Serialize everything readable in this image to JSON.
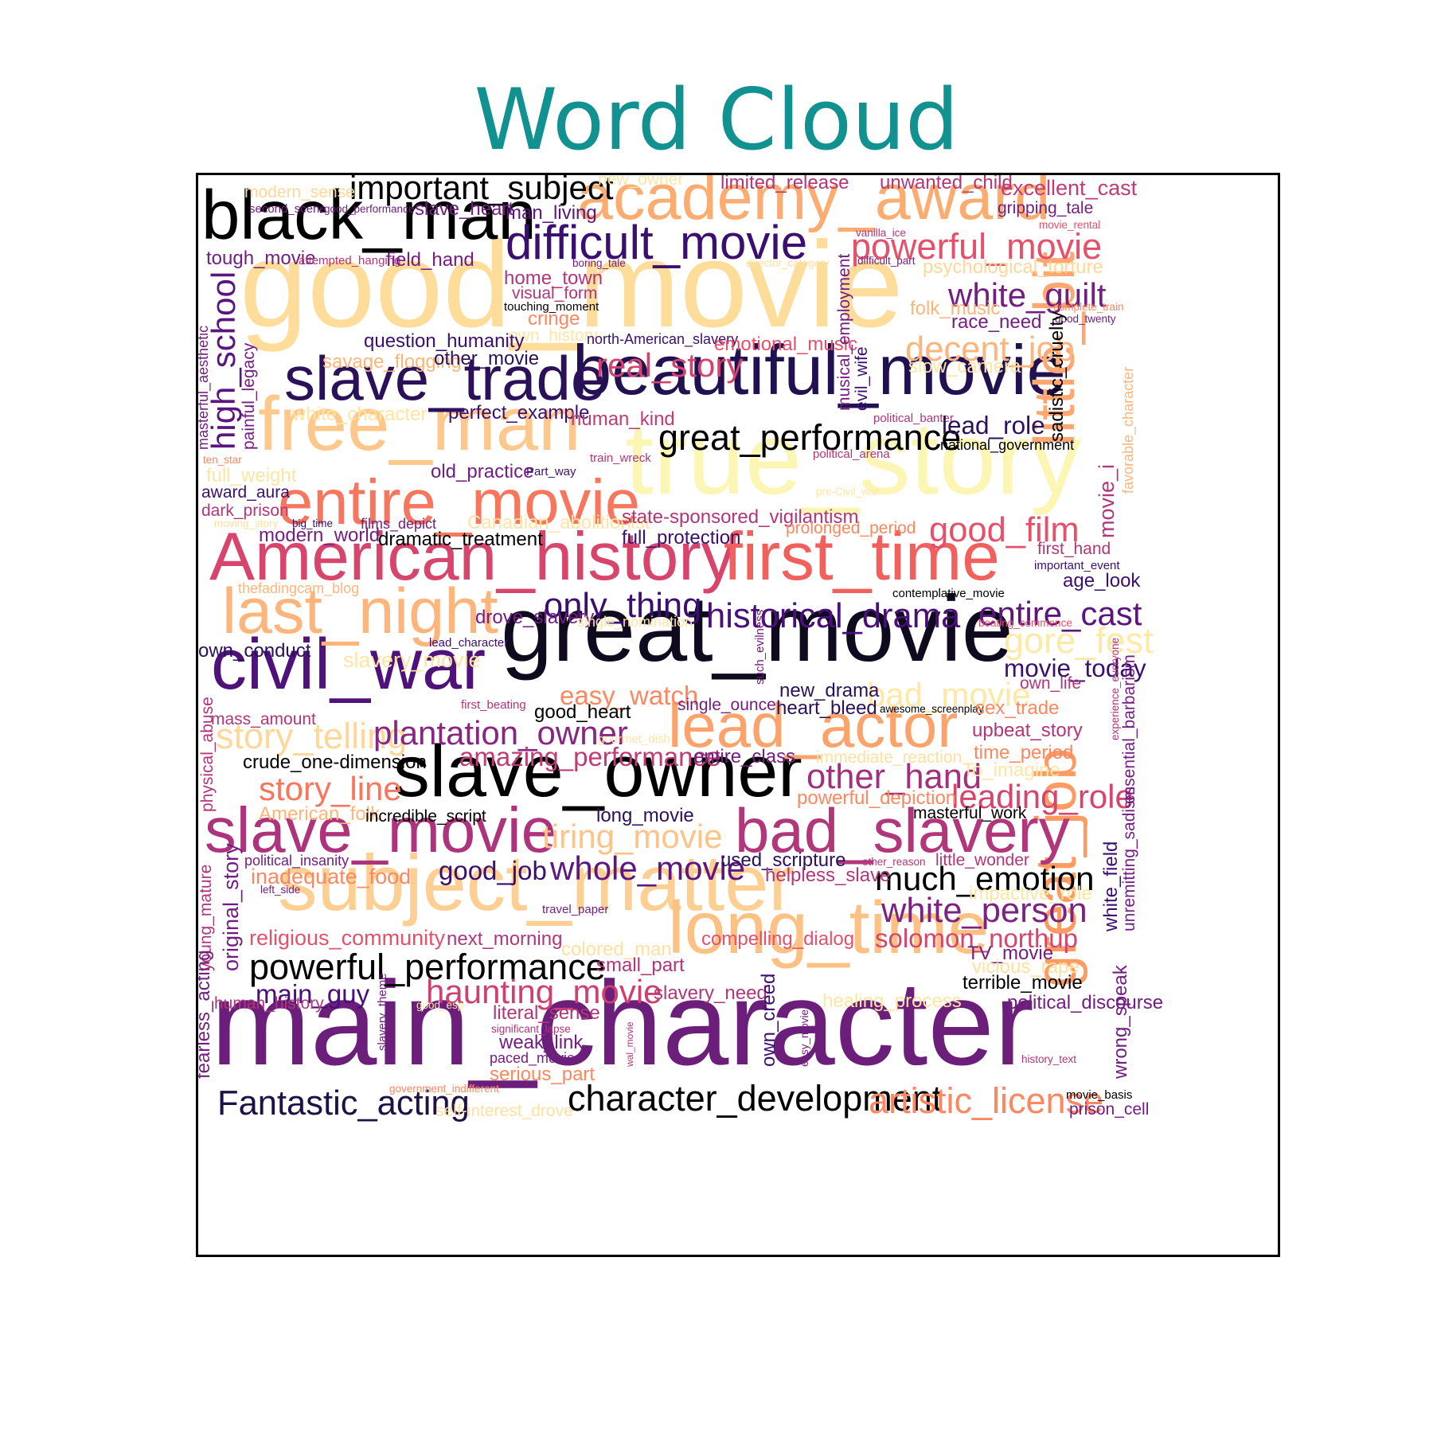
{
  "title": "Word Cloud",
  "colors": {
    "title": "#11918f",
    "frame": "#000000"
  },
  "chart_data": {
    "type": "wordcloud",
    "title": "Word Cloud",
    "colormap": "magma",
    "words": [
      {
        "text": "main_character",
        "weight": 100,
        "color": "#6b1f7a"
      },
      {
        "text": "good_movie",
        "weight": 98,
        "color": "#fedd9a"
      },
      {
        "text": "true_story",
        "weight": 88,
        "color": "#fcf6b4"
      },
      {
        "text": "great_movie",
        "weight": 82,
        "color": "#0f0a1e"
      },
      {
        "text": "subject_matter",
        "weight": 72,
        "color": "#fdcf92"
      },
      {
        "text": "free_man",
        "weight": 66,
        "color": "#fec88c"
      },
      {
        "text": "long_time",
        "weight": 64,
        "color": "#fdc184"
      },
      {
        "text": "slave_owner",
        "weight": 62,
        "color": "#000000"
      },
      {
        "text": "beautiful_movie",
        "weight": 60,
        "color": "#221150"
      },
      {
        "text": "black_man",
        "weight": 58,
        "color": "#000000"
      },
      {
        "text": "American_history",
        "weight": 58,
        "color": "#d8456c"
      },
      {
        "text": "first_time",
        "weight": 58,
        "color": "#f1605d"
      },
      {
        "text": "civil_war",
        "weight": 58,
        "color": "#4f127b"
      },
      {
        "text": "academy_award",
        "weight": 56,
        "color": "#fcac70"
      },
      {
        "text": "last_night",
        "weight": 54,
        "color": "#feb57b"
      },
      {
        "text": "lead_actor",
        "weight": 54,
        "color": "#fca36c"
      },
      {
        "text": "great_job",
        "weight": 54,
        "color": "#fd9b62"
      },
      {
        "text": "little_bit",
        "weight": 52,
        "color": "#fea771"
      },
      {
        "text": "slave_trade",
        "weight": 52,
        "color": "#2a115a"
      },
      {
        "text": "entire_movie",
        "weight": 50,
        "color": "#f7765e"
      },
      {
        "text": "slave_movie",
        "weight": 50,
        "color": "#ad347c"
      },
      {
        "text": "bad_slavery",
        "weight": 50,
        "color": "#b1367a"
      },
      {
        "text": "difficult_movie",
        "weight": 38,
        "color": "#3b0f70"
      },
      {
        "text": "important_subject",
        "weight": 26,
        "color": "#000000"
      },
      {
        "text": "powerful_movie",
        "weight": 28,
        "color": "#e5516a"
      },
      {
        "text": "white_guilt",
        "weight": 26,
        "color": "#721f81"
      },
      {
        "text": "decent_job",
        "weight": 26,
        "color": "#feb47b"
      },
      {
        "text": "real_story",
        "weight": 26,
        "color": "#d3436e"
      },
      {
        "text": "great_performance",
        "weight": 27,
        "color": "#000000"
      },
      {
        "text": "high_school",
        "weight": 25,
        "color": "#5a167e"
      },
      {
        "text": "good_film",
        "weight": 26,
        "color": "#e5506a"
      },
      {
        "text": "only_thing",
        "weight": 26,
        "color": "#3b0f70"
      },
      {
        "text": "historical_drama",
        "weight": 26,
        "color": "#4a1079"
      },
      {
        "text": "entire_cast",
        "weight": 26,
        "color": "#5a167e"
      },
      {
        "text": "gore_fest",
        "weight": 26,
        "color": "#fdeaa6"
      },
      {
        "text": "movie_today",
        "weight": 18,
        "color": "#3b0f70"
      },
      {
        "text": "bad_movie",
        "weight": 26,
        "color": "#fde8a5"
      },
      {
        "text": "story_telling",
        "weight": 27,
        "color": "#fed89a"
      },
      {
        "text": "plantation_owner",
        "weight": 26,
        "color": "#872781"
      },
      {
        "text": "amazing_performance",
        "weight": 20,
        "color": "#c13b75"
      },
      {
        "text": "easy_watch",
        "weight": 20,
        "color": "#fb8861"
      },
      {
        "text": "story_line",
        "weight": 26,
        "color": "#f8765c"
      },
      {
        "text": "other_hand",
        "weight": 27,
        "color": "#a3307e"
      },
      {
        "text": "leading_role",
        "weight": 26,
        "color": "#d6456c"
      },
      {
        "text": "tiring_movie",
        "weight": 26,
        "color": "#fec387"
      },
      {
        "text": "good_job",
        "weight": 20,
        "color": "#3b0f70"
      },
      {
        "text": "whole_movie",
        "weight": 26,
        "color": "#5e177f"
      },
      {
        "text": "much_emotion",
        "weight": 26,
        "color": "#000000"
      },
      {
        "text": "white_person",
        "weight": 26,
        "color": "#7c2382"
      },
      {
        "text": "solomon_northup",
        "weight": 20,
        "color": "#d6456c"
      },
      {
        "text": "powerful_performance",
        "weight": 27,
        "color": "#000000"
      },
      {
        "text": "haunting_movie",
        "weight": 26,
        "color": "#cf4070"
      },
      {
        "text": "main_guy",
        "weight": 20,
        "color": "#4a1079"
      },
      {
        "text": "Fantastic_acting",
        "weight": 27,
        "color": "#1d1147"
      },
      {
        "text": "character_development",
        "weight": 27,
        "color": "#000000"
      },
      {
        "text": "artistic_license",
        "weight": 27,
        "color": "#fb8861"
      },
      {
        "text": "modern_sense",
        "weight": 12,
        "color": "#fed79a"
      },
      {
        "text": "new_owner",
        "weight": 12,
        "color": "#fde5a5"
      },
      {
        "text": "limited_release",
        "weight": 14,
        "color": "#b1367a"
      },
      {
        "text": "unwanted_child",
        "weight": 14,
        "color": "#b1367a"
      },
      {
        "text": "excellent_cast",
        "weight": 16,
        "color": "#c13b75"
      },
      {
        "text": "second_scene",
        "weight": 9,
        "color": "#721f81"
      },
      {
        "text": "good_performance",
        "weight": 8,
        "color": "#721f81"
      },
      {
        "text": "slave_heart",
        "weight": 14,
        "color": "#721f81"
      },
      {
        "text": "man_living",
        "weight": 14,
        "color": "#5a167e"
      },
      {
        "text": "gripping_tale",
        "weight": 12,
        "color": "#721f81"
      },
      {
        "text": "movie_rental",
        "weight": 8,
        "color": "#e5506a"
      },
      {
        "text": "tough_movie",
        "weight": 14,
        "color": "#721f81"
      },
      {
        "text": "attempted_hanging",
        "weight": 8,
        "color": "#b1367a"
      },
      {
        "text": "field_hand",
        "weight": 14,
        "color": "#721f81"
      },
      {
        "text": "boring_tale",
        "weight": 8,
        "color": "#721f81"
      },
      {
        "text": "director_category",
        "weight": 8,
        "color": "#fee0a0"
      },
      {
        "text": "difficult_part",
        "weight": 8,
        "color": "#721f81"
      },
      {
        "text": "psychological_torture",
        "weight": 14,
        "color": "#fed89a"
      },
      {
        "text": "home_town",
        "weight": 14,
        "color": "#b1367a"
      },
      {
        "text": "visual_form",
        "weight": 12,
        "color": "#b1367a"
      },
      {
        "text": "touching_moment",
        "weight": 8,
        "color": "#000000"
      },
      {
        "text": "cringe",
        "weight": 14,
        "color": "#fb8861"
      },
      {
        "text": "own_history",
        "weight": 12,
        "color": "#fde5a5"
      },
      {
        "text": "folk_music",
        "weight": 14,
        "color": "#feb57b"
      },
      {
        "text": "complete_train",
        "weight": 8,
        "color": "#fb8861"
      },
      {
        "text": "race_need",
        "weight": 14,
        "color": "#721f81"
      },
      {
        "text": "good_twenty",
        "weight": 8,
        "color": "#721f81"
      },
      {
        "text": "vanilla_ice",
        "weight": 8,
        "color": "#b1367a"
      },
      {
        "text": "question_humanity",
        "weight": 14,
        "color": "#3b0f70"
      },
      {
        "text": "north-American_slavery",
        "weight": 10,
        "color": "#3b0f70"
      },
      {
        "text": "savage_flogging",
        "weight": 14,
        "color": "#feb57b"
      },
      {
        "text": "other_movie",
        "weight": 14,
        "color": "#2a115a"
      },
      {
        "text": "emotional_music",
        "weight": 14,
        "color": "#e5506a"
      },
      {
        "text": "slow_camera",
        "weight": 14,
        "color": "#fde5a5"
      },
      {
        "text": "musical_employment",
        "weight": 12,
        "color": "#721f81"
      },
      {
        "text": "evil_wife",
        "weight": 12,
        "color": "#3b0f70"
      },
      {
        "text": "sadistic_cruelty",
        "weight": 14,
        "color": "#000000"
      },
      {
        "text": "favorable_character",
        "weight": 10,
        "color": "#feb57b"
      },
      {
        "text": "masterful_aesthetic",
        "weight": 10,
        "color": "#721f81"
      },
      {
        "text": "painful_legacy",
        "weight": 12,
        "color": "#721f81"
      },
      {
        "text": "white_character",
        "weight": 14,
        "color": "#fde5a5"
      },
      {
        "text": "perfect_example",
        "weight": 14,
        "color": "#3b0f70"
      },
      {
        "text": "human_kind",
        "weight": 14,
        "color": "#c13b75"
      },
      {
        "text": "political_banter",
        "weight": 9,
        "color": "#b1367a"
      },
      {
        "text": "lead_role",
        "weight": 18,
        "color": "#2a115a"
      },
      {
        "text": "national_government",
        "weight": 10,
        "color": "#000000"
      },
      {
        "text": "ten_star",
        "weight": 8,
        "color": "#fb8861"
      },
      {
        "text": "train_wreck",
        "weight": 9,
        "color": "#b1367a"
      },
      {
        "text": "political_arena",
        "weight": 9,
        "color": "#b1367a"
      },
      {
        "text": "full_weight",
        "weight": 14,
        "color": "#fde5a5"
      },
      {
        "text": "old_practice",
        "weight": 14,
        "color": "#721f81"
      },
      {
        "text": "Part_way",
        "weight": 9,
        "color": "#3b0f70"
      },
      {
        "text": "pre-Civil_war",
        "weight": 8,
        "color": "#fde5a5"
      },
      {
        "text": "award_aura",
        "weight": 12,
        "color": "#3b0f70"
      },
      {
        "text": "dark_prison",
        "weight": 12,
        "color": "#b1367a"
      },
      {
        "text": "movie_i",
        "weight": 16,
        "color": "#b1367a"
      },
      {
        "text": "moving_story",
        "weight": 8,
        "color": "#fee0a0"
      },
      {
        "text": "big_time",
        "weight": 8,
        "color": "#3b0f70"
      },
      {
        "text": "films_depict",
        "weight": 10,
        "color": "#721f81"
      },
      {
        "text": "Canadian_abolitionist",
        "weight": 14,
        "color": "#fde5a5"
      },
      {
        "text": "state-sponsored_vigilantism",
        "weight": 14,
        "color": "#b1367a"
      },
      {
        "text": "prolonged_period",
        "weight": 12,
        "color": "#fb8861"
      },
      {
        "text": "modern_world",
        "weight": 14,
        "color": "#721f81"
      },
      {
        "text": "dramatic_treatment",
        "weight": 14,
        "color": "#000000"
      },
      {
        "text": "full_protection",
        "weight": 14,
        "color": "#3b0f70"
      },
      {
        "text": "first_hand",
        "weight": 12,
        "color": "#b1367a"
      },
      {
        "text": "important_event",
        "weight": 9,
        "color": "#3b0f70"
      },
      {
        "text": "age_look",
        "weight": 14,
        "color": "#3b0f70"
      },
      {
        "text": "thefadingcam_blog",
        "weight": 10,
        "color": "#feb57b"
      },
      {
        "text": "contemplative_movie",
        "weight": 10,
        "color": "#000000"
      },
      {
        "text": "drove_slavery",
        "weight": 14,
        "color": "#721f81"
      },
      {
        "text": "single_nomination",
        "weight": 10,
        "color": "#fde5a5"
      },
      {
        "text": "beating_commence",
        "weight": 8,
        "color": "#e5506a"
      },
      {
        "text": "lead_character",
        "weight": 9,
        "color": "#3b0f70"
      },
      {
        "text": "own_conduct",
        "weight": 14,
        "color": "#2a115a"
      },
      {
        "text": "slavery_movie",
        "weight": 16,
        "color": "#fde5a5"
      },
      {
        "text": "such_evilness",
        "weight": 9,
        "color": "#721f81"
      },
      {
        "text": "own_life",
        "weight": 12,
        "color": "#b1367a"
      },
      {
        "text": "new_drama",
        "weight": 14,
        "color": "#2a115a"
      },
      {
        "text": "experience_everyone",
        "weight": 8,
        "color": "#b1367a"
      },
      {
        "text": "essential_barbarism",
        "weight": 12,
        "color": "#721f81"
      },
      {
        "text": "first_beating",
        "weight": 9,
        "color": "#b1367a"
      },
      {
        "text": "good_heart",
        "weight": 14,
        "color": "#000000"
      },
      {
        "text": "single_ounce",
        "weight": 12,
        "color": "#721f81"
      },
      {
        "text": "heart_bleed",
        "weight": 14,
        "color": "#2a115a"
      },
      {
        "text": "awesome_screenplay",
        "weight": 8,
        "color": "#000000"
      },
      {
        "text": "sex_trade",
        "weight": 14,
        "color": "#fb8861"
      },
      {
        "text": "mass_amount",
        "weight": 12,
        "color": "#b1367a"
      },
      {
        "text": "physical_abuse",
        "weight": 12,
        "color": "#b1367a"
      },
      {
        "text": "gourmet_dish",
        "weight": 9,
        "color": "#fde5a5"
      },
      {
        "text": "upbeat_story",
        "weight": 14,
        "color": "#b1367a"
      },
      {
        "text": "entire_class",
        "weight": 14,
        "color": "#721f81"
      },
      {
        "text": "immediate_reaction",
        "weight": 12,
        "color": "#fee0a0"
      },
      {
        "text": "time_period",
        "weight": 14,
        "color": "#fb8861"
      },
      {
        "text": "crude_one-dimension",
        "weight": 14,
        "color": "#000000"
      },
      {
        "text": "To_imagine",
        "weight": 14,
        "color": "#fde5a5"
      },
      {
        "text": "powerful_depiction",
        "weight": 14,
        "color": "#fb8861"
      },
      {
        "text": "American_folk",
        "weight": 14,
        "color": "#feb57b"
      },
      {
        "text": "incredible_script",
        "weight": 12,
        "color": "#000000"
      },
      {
        "text": "long_movie",
        "weight": 14,
        "color": "#2a115a"
      },
      {
        "text": "masterful_work",
        "weight": 12,
        "color": "#000000"
      },
      {
        "text": "political_insanity",
        "weight": 10,
        "color": "#721f81"
      },
      {
        "text": "young_mature",
        "weight": 12,
        "color": "#b1367a"
      },
      {
        "text": "inadequate_food",
        "weight": 16,
        "color": "#fb8861"
      },
      {
        "text": "left_side",
        "weight": 8,
        "color": "#721f81"
      },
      {
        "text": "original_story",
        "weight": 16,
        "color": "#721f81"
      },
      {
        "text": "used_scripture",
        "weight": 14,
        "color": "#2a115a"
      },
      {
        "text": "other_reason",
        "weight": 8,
        "color": "#b1367a"
      },
      {
        "text": "little_wonder",
        "weight": 12,
        "color": "#b1367a"
      },
      {
        "text": "helpless_slave",
        "weight": 14,
        "color": "#b1367a"
      },
      {
        "text": "impactive_role",
        "weight": 14,
        "color": "#fde5a5"
      },
      {
        "text": "white_field",
        "weight": 14,
        "color": "#3b0f70"
      },
      {
        "text": "unremitting_sadism",
        "weight": 12,
        "color": "#721f81"
      },
      {
        "text": "travel_paper",
        "weight": 9,
        "color": "#721f81"
      },
      {
        "text": "religious_community",
        "weight": 16,
        "color": "#e5506a"
      },
      {
        "text": "next_morning",
        "weight": 14,
        "color": "#b1367a"
      },
      {
        "text": "compelling_dialog",
        "weight": 14,
        "color": "#e5506a"
      },
      {
        "text": "colored_man",
        "weight": 14,
        "color": "#fee0a0"
      },
      {
        "text": "TV_movie",
        "weight": 14,
        "color": "#721f81"
      },
      {
        "text": "small_part",
        "weight": 14,
        "color": "#b1367a"
      },
      {
        "text": "vicious_rape",
        "weight": 14,
        "color": "#fee0a0"
      },
      {
        "text": "terrible_movie",
        "weight": 14,
        "color": "#000000"
      },
      {
        "text": "slavery_theme",
        "weight": 9,
        "color": "#721f81"
      },
      {
        "text": "slavery_need",
        "weight": 14,
        "color": "#b1367a"
      },
      {
        "text": "healing_process",
        "weight": 14,
        "color": "#fde5a5"
      },
      {
        "text": "human_history",
        "weight": 14,
        "color": "#b1367a"
      },
      {
        "text": "good_esp",
        "weight": 9,
        "color": "#fde5a5"
      },
      {
        "text": "political_discourse",
        "weight": 14,
        "color": "#721f81"
      },
      {
        "text": "literal_sense",
        "weight": 14,
        "color": "#b1367a"
      },
      {
        "text": "own_creed",
        "weight": 14,
        "color": "#3b0f70"
      },
      {
        "text": "fearless_acting",
        "weight": 14,
        "color": "#721f81"
      },
      {
        "text": "significant_lapse",
        "weight": 9,
        "color": "#b1367a"
      },
      {
        "text": "weak_link",
        "weight": 14,
        "color": "#721f81"
      },
      {
        "text": "wal_movie",
        "weight": 8,
        "color": "#b1367a"
      },
      {
        "text": "easy_movie",
        "weight": 9,
        "color": "#721f81"
      },
      {
        "text": "wrong_speak",
        "weight": 14,
        "color": "#721f81"
      },
      {
        "text": "paced_movie",
        "weight": 10,
        "color": "#721f81"
      },
      {
        "text": "history_text",
        "weight": 9,
        "color": "#b1367a"
      },
      {
        "text": "serious_part",
        "weight": 14,
        "color": "#fb8861"
      },
      {
        "text": "government_indifferent",
        "weight": 8,
        "color": "#fb8861"
      },
      {
        "text": "movie_basis",
        "weight": 9,
        "color": "#000000"
      },
      {
        "text": "self-interest_drove",
        "weight": 12,
        "color": "#fee0a0"
      },
      {
        "text": "prison_cell",
        "weight": 12,
        "color": "#721f81"
      }
    ]
  }
}
